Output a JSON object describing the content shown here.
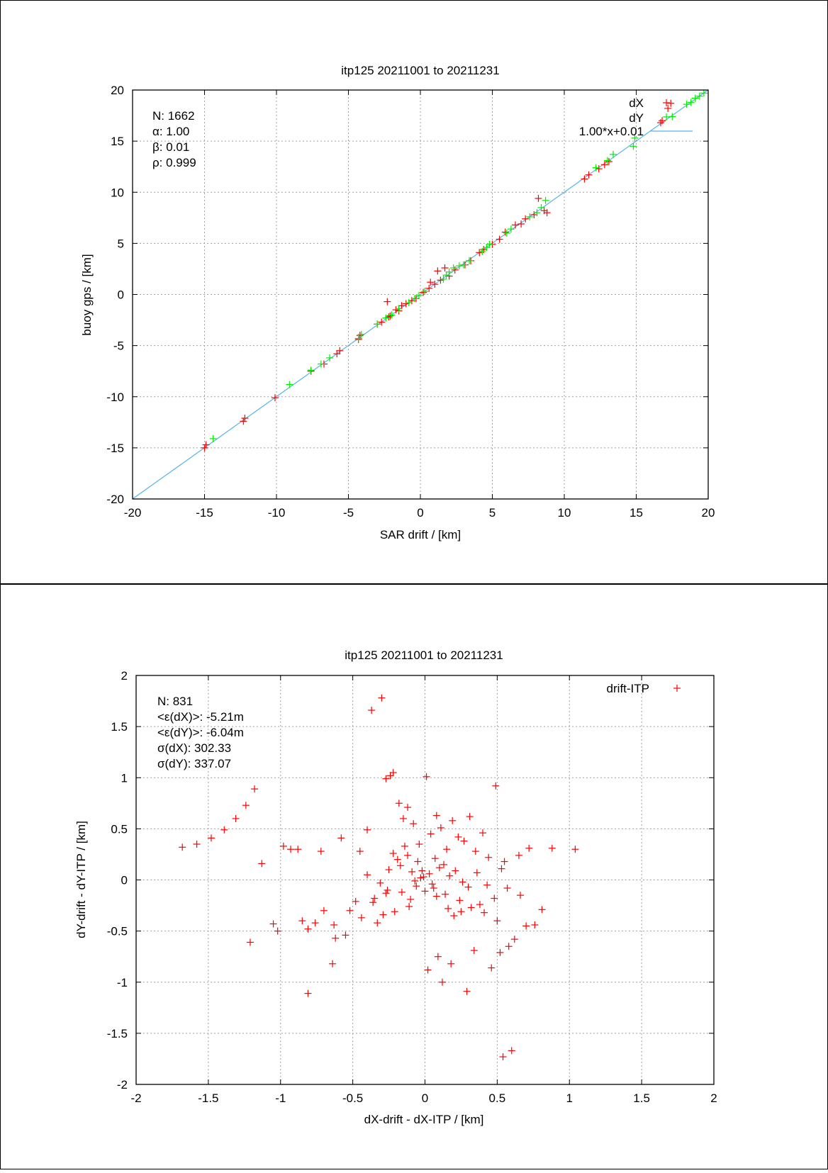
{
  "chart_data": [
    {
      "type": "scatter",
      "title": "itp125 20211001 to 20211231",
      "xlabel": "SAR drift / [km]",
      "ylabel": "buoy gps / [km]",
      "xlim": [
        -20,
        20
      ],
      "ylim": [
        -20,
        20
      ],
      "xticks": [
        "-20",
        "-15",
        "-10",
        "-5",
        "0",
        "5",
        "10",
        "15",
        "20"
      ],
      "yticks": [
        "-20",
        "-15",
        "-10",
        "-5",
        "0",
        "5",
        "10",
        "15",
        "20"
      ],
      "grid": true,
      "legend_position": "top-right",
      "stats": [
        "N: 1662",
        "α: 1.00",
        "β: 0.01",
        "ρ: 0.999"
      ],
      "fit": {
        "name": "1.00*x+0.01",
        "slope": 1.0,
        "intercept": 0.01,
        "color": "#56b4e9"
      },
      "series": [
        {
          "name": "dX",
          "color": "#ff0000",
          "marker": "+",
          "x": [
            -15.0,
            -14.9,
            -12.3,
            -12.2,
            -10.1,
            -7.6,
            -6.7,
            -5.8,
            -5.6,
            -4.3,
            -4.2,
            -3.0,
            -2.7,
            -2.3,
            -2.2,
            -2.1,
            -1.7,
            -1.5,
            -1.3,
            -1.0,
            -0.6,
            -0.3,
            0.2,
            0.6,
            0.7,
            1.0,
            1.2,
            1.4,
            1.7,
            2.0,
            2.4,
            3.1,
            3.5,
            4.1,
            4.4,
            5.0,
            5.5,
            5.9,
            6.6,
            7.0,
            7.3,
            7.9,
            8.2,
            8.6,
            8.8,
            11.4,
            11.7,
            12.4,
            12.8,
            13.1,
            16.7,
            16.8,
            17.2,
            17.4
          ],
          "y": [
            -15.0,
            -14.7,
            -12.4,
            -12.1,
            -10.1,
            -7.5,
            -6.8,
            -5.8,
            -5.5,
            -4.4,
            -4.0,
            -2.9,
            -2.7,
            -0.7,
            -2.2,
            -2.1,
            -1.5,
            -1.6,
            -1.1,
            -0.9,
            -0.6,
            -0.4,
            0.2,
            0.6,
            1.2,
            1.0,
            2.3,
            1.4,
            2.6,
            1.8,
            2.4,
            2.9,
            3.3,
            4.1,
            4.4,
            4.9,
            5.4,
            6.1,
            6.8,
            6.9,
            7.4,
            7.8,
            9.4,
            8.2,
            8.0,
            11.3,
            11.7,
            12.3,
            12.7,
            13.0,
            16.8,
            17.0,
            18.2,
            18.7
          ]
        },
        {
          "name": "dY",
          "color": "#00ee00",
          "marker": "+",
          "x": [
            -14.4,
            -9.1,
            -7.6,
            -6.9,
            -6.3,
            -4.3,
            -4.1,
            -3.0,
            -2.4,
            -2.0,
            -1.5,
            -0.8,
            -0.4,
            -0.1,
            0.3,
            1.6,
            1.8,
            2.0,
            2.3,
            2.7,
            3.0,
            3.4,
            4.3,
            4.6,
            4.8,
            6.0,
            6.3,
            7.6,
            8.1,
            8.4,
            8.7,
            12.2,
            13.0,
            13.4,
            14.8,
            14.9,
            17.5,
            18.5,
            18.8,
            19.1,
            19.4,
            19.7
          ],
          "y": [
            -14.1,
            -8.8,
            -7.4,
            -6.8,
            -6.2,
            -4.3,
            -3.9,
            -2.9,
            -2.3,
            -2.0,
            -1.4,
            -0.8,
            -0.4,
            -0.1,
            0.3,
            1.5,
            1.9,
            2.2,
            2.6,
            2.8,
            2.9,
            3.3,
            4.2,
            4.6,
            4.9,
            6.0,
            6.4,
            7.6,
            8.0,
            8.5,
            9.2,
            12.4,
            13.1,
            13.7,
            14.5,
            15.3,
            17.4,
            18.6,
            18.8,
            19.2,
            19.4,
            19.7
          ]
        }
      ]
    },
    {
      "type": "scatter",
      "title": "itp125 20211001 to 20211231",
      "xlabel": "dX-drift - dX-ITP / [km]",
      "ylabel": "dY-drift - dY-ITP / [km]",
      "xlim": [
        -2,
        2
      ],
      "ylim": [
        -2,
        2
      ],
      "xticks": [
        "-2",
        "-1.5",
        "-1",
        "-0.5",
        "0",
        "0.5",
        "1",
        "1.5",
        "2"
      ],
      "yticks": [
        "-2",
        "-1.5",
        "-1",
        "-0.5",
        "0",
        "0.5",
        "1",
        "1.5",
        "2"
      ],
      "grid": true,
      "legend_position": "top-right",
      "stats": [
        "N: 831",
        "<ε(dX)>:  -5.21m",
        "<ε(dY)>: -6.04m",
        "σ(dX):  302.33",
        "σ(dY):  337.07"
      ],
      "series": [
        {
          "name": "drift-ITP",
          "color": "#ff0000",
          "marker": "+",
          "x": [
            -1.68,
            -1.58,
            -1.48,
            -1.39,
            -1.31,
            -1.24,
            -1.18,
            -1.13,
            -1.21,
            -1.05,
            -1.02,
            -0.98,
            -0.93,
            -0.88,
            -0.85,
            -0.81,
            -0.76,
            -0.72,
            -0.64,
            -0.62,
            -0.58,
            -0.52,
            -0.45,
            -0.4,
            -0.37,
            -0.3,
            -0.27,
            -0.24,
            -0.22,
            -0.18,
            -0.15,
            -0.12,
            -0.08,
            -0.05,
            -0.02,
            0.01,
            0.04,
            0.08,
            0.11,
            0.15,
            0.19,
            0.23,
            0.27,
            0.31,
            0.35,
            0.4,
            0.44,
            0.49,
            0.52,
            0.55,
            0.6,
            0.65,
            0.72,
            0.76,
            0.81,
            0.88,
            1.04,
            -0.36,
            -0.29,
            0.09,
            0.5,
            0.58,
            0.54,
            0.29,
            0.12,
            -0.81,
            -0.63,
            -0.55,
            -0.44,
            -0.33,
            -0.21,
            -0.11,
            0.02,
            0.18,
            0.34,
            0.46,
            0.62,
            0.7,
            -0.7,
            -0.48,
            -0.35,
            -0.26,
            -0.16,
            -0.06,
            0.06,
            0.14,
            0.24,
            0.38,
            0.48,
            0.57,
            0.66,
            -0.4,
            -0.25,
            -0.17,
            -0.09,
            -0.03,
            0.03,
            0.1,
            0.17,
            0.26,
            0.36,
            0.43,
            0.53,
            -0.31,
            -0.19,
            -0.12,
            -0.07,
            -0.01,
            0.05,
            0.13,
            0.21,
            0.3,
            -0.22,
            -0.14,
            -0.04,
            0.07,
            0.16,
            0.25,
            -0.27,
            -0.1,
            0.0,
            0.08,
            0.2,
            0.32,
            0.41
          ],
          "y": [
            0.32,
            0.35,
            0.41,
            0.49,
            0.6,
            0.73,
            0.89,
            0.16,
            -0.61,
            -0.43,
            -0.5,
            0.33,
            0.3,
            0.3,
            -0.4,
            -1.11,
            -0.42,
            0.28,
            -0.82,
            -0.57,
            0.41,
            -0.3,
            0.28,
            0.49,
            1.66,
            1.78,
            0.99,
            1.02,
            1.05,
            0.75,
            0.6,
            0.71,
            0.55,
            0.18,
            0.09,
            1.01,
            0.45,
            0.63,
            0.51,
            0.3,
            0.58,
            0.42,
            0.38,
            0.62,
            0.28,
            0.46,
            0.22,
            0.92,
            -0.71,
            0.18,
            -1.67,
            0.24,
            0.31,
            -0.44,
            -0.29,
            0.31,
            0.3,
            -0.22,
            -0.34,
            -0.75,
            -0.4,
            -0.65,
            -1.73,
            -1.09,
            -1.0,
            -0.48,
            -0.44,
            -0.54,
            -0.37,
            -0.42,
            -0.31,
            -0.26,
            -0.88,
            -0.82,
            -0.69,
            -0.86,
            -0.58,
            -0.45,
            -0.3,
            -0.21,
            -0.18,
            -0.1,
            -0.12,
            -0.06,
            -0.08,
            -0.14,
            -0.2,
            -0.24,
            -0.18,
            -0.08,
            -0.15,
            0.05,
            0.1,
            0.14,
            0.08,
            0.02,
            0.06,
            0.12,
            0.04,
            -0.02,
            0.07,
            -0.05,
            0.11,
            -0.03,
            0.2,
            0.24,
            -0.01,
            0.03,
            -0.04,
            0.15,
            0.09,
            -0.07,
            0.26,
            0.33,
            0.35,
            0.21,
            -0.28,
            -0.31,
            -0.13,
            -0.19,
            -0.11,
            -0.16,
            -0.35,
            -0.27,
            -0.32
          ]
        }
      ]
    }
  ]
}
